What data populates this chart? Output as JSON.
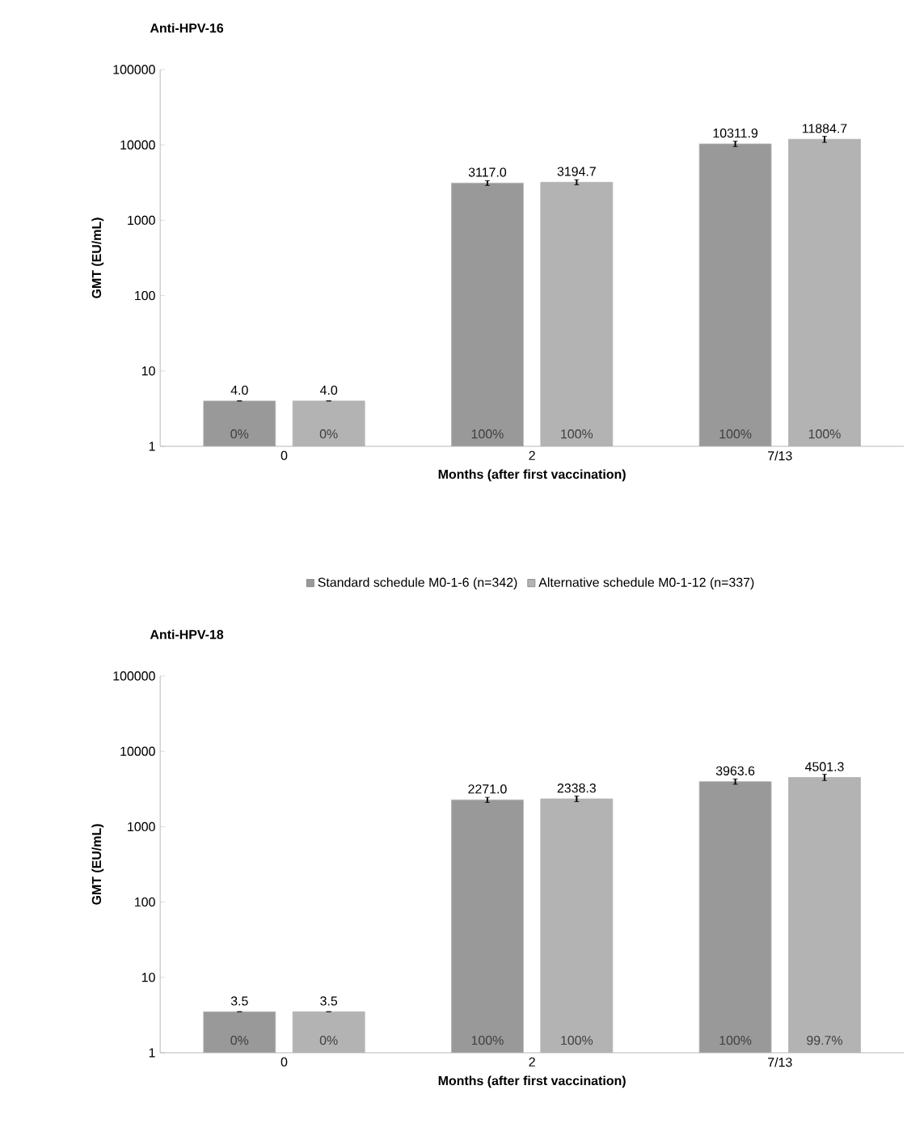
{
  "chart_data": [
    {
      "type": "bar",
      "title": "Anti-HPV-16",
      "xlabel": "Months (after first vaccination)",
      "ylabel": "GMT (EU/mL)",
      "categories": [
        "0",
        "2",
        "7/13"
      ],
      "series": [
        {
          "name": "Standard schedule M0-1-6 (n=342)",
          "color": "#999999",
          "values": [
            4.0,
            3117.0,
            10311.9
          ],
          "value_labels": [
            "4.0",
            "3117.0",
            "10311.9"
          ],
          "errors": [
            null,
            [
              2900,
              3350
            ],
            [
              9500,
              11200
            ]
          ]
        },
        {
          "name": "Alternative schedule M0-1-12 (n=337)",
          "color": "#b3b3b3",
          "values": [
            4.0,
            3194.7,
            11884.7
          ],
          "value_labels": [
            "4.0",
            "3194.7",
            "11884.7"
          ],
          "errors": [
            null,
            [
              2950,
              3450
            ],
            [
              10800,
              13000
            ]
          ]
        }
      ],
      "annotations": [
        "0%",
        "0%",
        "100%",
        "100%",
        "100%",
        "100%"
      ],
      "log": "y",
      "ylim": [
        1,
        100000
      ],
      "yticks": [
        1,
        10,
        100,
        1000,
        10000,
        100000
      ],
      "legend": "bottom"
    },
    {
      "type": "bar",
      "title": "Anti-HPV-18",
      "xlabel": "Months (after first vaccination)",
      "ylabel": "GMT (EU/mL)",
      "categories": [
        "0",
        "2",
        "7/13"
      ],
      "series": [
        {
          "color": "#999999",
          "values": [
            3.5,
            2271.0,
            3963.6
          ],
          "value_labels": [
            "3.5",
            "2271.0",
            "3963.6"
          ],
          "errors": [
            null,
            [
              2100,
              2450
            ],
            [
              3650,
              4300
            ]
          ]
        },
        {
          "color": "#b3b3b3",
          "values": [
            3.5,
            2338.3,
            4501.3
          ],
          "value_labels": [
            "3.5",
            "2338.3",
            "4501.3"
          ],
          "errors": [
            null,
            [
              2150,
              2550
            ],
            [
              4100,
              4950
            ]
          ]
        }
      ],
      "annotations": [
        "0%",
        "0%",
        "100%",
        "100%",
        "100%",
        "99.7%"
      ],
      "log": "y",
      "ylim": [
        1,
        100000
      ],
      "yticks": [
        1,
        10,
        100,
        1000,
        10000,
        100000
      ]
    }
  ]
}
